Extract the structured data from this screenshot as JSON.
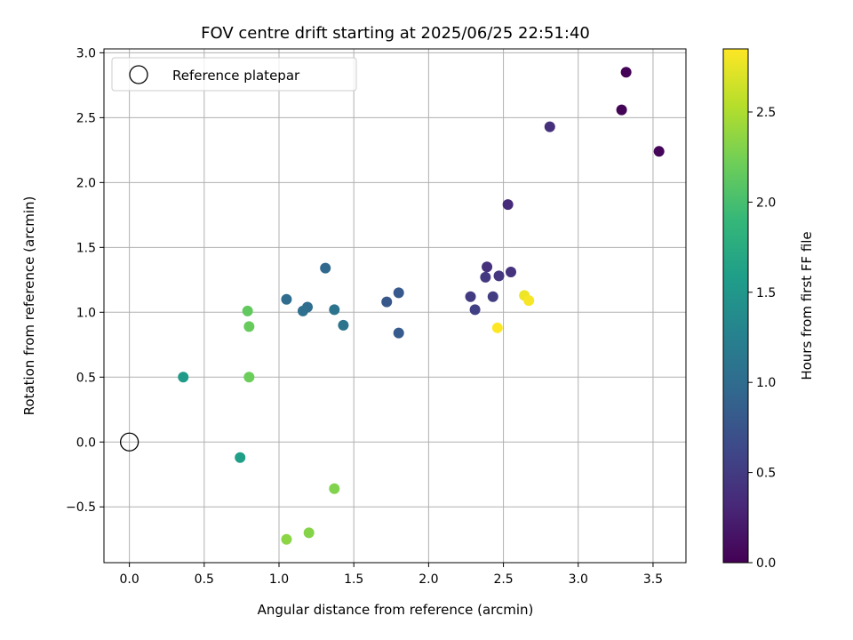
{
  "chart_data": {
    "type": "scatter",
    "title": "FOV centre drift starting at 2025/06/25 22:51:40",
    "xlabel": "Angular distance from reference (arcmin)",
    "ylabel": "Rotation from reference (arcmin)",
    "xlim": [
      -0.17,
      3.72
    ],
    "ylim": [
      -0.93,
      3.03
    ],
    "x_ticks": [
      0.0,
      0.5,
      1.0,
      1.5,
      2.0,
      2.5,
      3.0,
      3.5
    ],
    "x_tick_labels": [
      "0.0",
      "0.5",
      "1.0",
      "1.5",
      "2.0",
      "2.5",
      "3.0",
      "3.5"
    ],
    "y_ticks": [
      -0.5,
      0.0,
      0.5,
      1.0,
      1.5,
      2.0,
      2.5,
      3.0
    ],
    "y_tick_labels": [
      "−0.5",
      "0.0",
      "0.5",
      "1.0",
      "1.5",
      "2.0",
      "2.5",
      "3.0"
    ],
    "grid": true,
    "legend": {
      "location": "top-left",
      "entries": [
        {
          "label": "Reference platepar",
          "marker": "open-circle"
        }
      ]
    },
    "reference_point": {
      "x": 0.0,
      "y": 0.0
    },
    "colormap": "viridis",
    "colorbar": {
      "label": "Hours from first FF file",
      "range": [
        0.0,
        2.85
      ],
      "ticks": [
        0.0,
        0.5,
        1.0,
        1.5,
        2.0,
        2.5
      ],
      "tick_labels": [
        "0.0",
        "0.5",
        "1.0",
        "1.5",
        "2.0",
        "2.5"
      ],
      "stops": [
        "#440154",
        "#482878",
        "#3e4989",
        "#31688e",
        "#26828e",
        "#1f9e89",
        "#35b779",
        "#6ece58",
        "#b5de2b",
        "#fde725"
      ]
    },
    "points": [
      {
        "x": 3.32,
        "y": 2.85,
        "c": 0.02
      },
      {
        "x": 3.29,
        "y": 2.56,
        "c": 0.03
      },
      {
        "x": 3.54,
        "y": 2.24,
        "c": 0.04
      },
      {
        "x": 2.81,
        "y": 2.43,
        "c": 0.38
      },
      {
        "x": 2.53,
        "y": 1.83,
        "c": 0.35
      },
      {
        "x": 2.39,
        "y": 1.35,
        "c": 0.4
      },
      {
        "x": 2.55,
        "y": 1.31,
        "c": 0.42
      },
      {
        "x": 2.47,
        "y": 1.28,
        "c": 0.45
      },
      {
        "x": 2.38,
        "y": 1.27,
        "c": 0.48
      },
      {
        "x": 2.28,
        "y": 1.12,
        "c": 0.5
      },
      {
        "x": 2.43,
        "y": 1.12,
        "c": 0.52
      },
      {
        "x": 2.31,
        "y": 1.02,
        "c": 0.55
      },
      {
        "x": 1.8,
        "y": 1.15,
        "c": 0.8
      },
      {
        "x": 1.72,
        "y": 1.08,
        "c": 0.78
      },
      {
        "x": 1.8,
        "y": 0.84,
        "c": 0.82
      },
      {
        "x": 1.31,
        "y": 1.34,
        "c": 0.95
      },
      {
        "x": 1.05,
        "y": 1.1,
        "c": 1.0
      },
      {
        "x": 1.19,
        "y": 1.04,
        "c": 1.02
      },
      {
        "x": 1.16,
        "y": 1.01,
        "c": 1.05
      },
      {
        "x": 1.37,
        "y": 1.02,
        "c": 1.08
      },
      {
        "x": 1.43,
        "y": 0.9,
        "c": 1.1
      },
      {
        "x": 0.36,
        "y": 0.5,
        "c": 1.55
      },
      {
        "x": 0.74,
        "y": -0.12,
        "c": 1.6
      },
      {
        "x": 0.79,
        "y": 1.01,
        "c": 2.15
      },
      {
        "x": 0.8,
        "y": 0.89,
        "c": 2.18
      },
      {
        "x": 0.8,
        "y": 0.5,
        "c": 2.2
      },
      {
        "x": 1.37,
        "y": -0.36,
        "c": 2.3
      },
      {
        "x": 1.2,
        "y": -0.7,
        "c": 2.32
      },
      {
        "x": 1.05,
        "y": -0.75,
        "c": 2.35
      },
      {
        "x": 2.64,
        "y": 1.13,
        "c": 2.78
      },
      {
        "x": 2.67,
        "y": 1.09,
        "c": 2.82
      },
      {
        "x": 2.46,
        "y": 0.88,
        "c": 2.85
      }
    ]
  }
}
